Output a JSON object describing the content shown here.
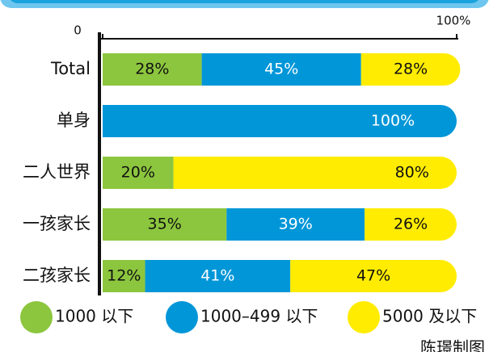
{
  "chart_data": {
    "type": "stacked_bar_horizontal",
    "categories": [
      "Total",
      "单身",
      "二人世界",
      "一孩家长",
      "二孩家长"
    ],
    "series": [
      {
        "name": "1000 以下",
        "color": "#8cc63e",
        "values": [
          28,
          null,
          20,
          35,
          12
        ],
        "value_labels": [
          "28%",
          null,
          "20%",
          "35%",
          "12%"
        ]
      },
      {
        "name": "1000–499 以下",
        "color": "#0096d8",
        "values": [
          45,
          100,
          null,
          39,
          41
        ],
        "value_labels": [
          "45%",
          "100%",
          null,
          "39%",
          "41%"
        ]
      },
      {
        "name": "5000 及以下",
        "color": "#ffec00",
        "values": [
          28,
          null,
          80,
          26,
          47
        ],
        "value_labels": [
          "28%",
          null,
          "80%",
          "26%",
          "47%"
        ]
      }
    ],
    "xlim": [
      0,
      100
    ],
    "xticks": [
      0,
      {
        "value": 100,
        "label": "100%"
      }
    ],
    "credit": "陈璟制图"
  }
}
